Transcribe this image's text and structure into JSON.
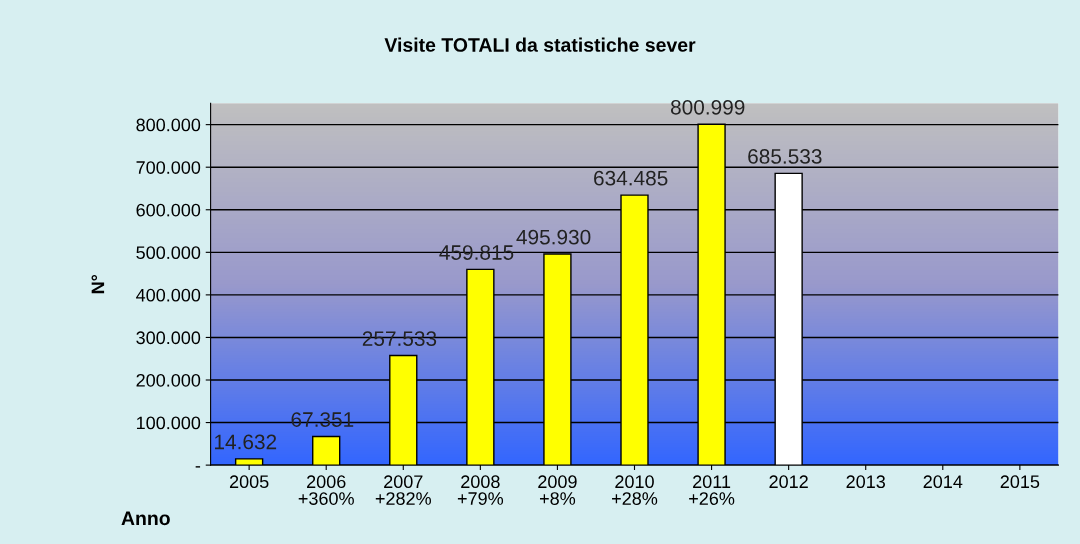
{
  "chart_data": {
    "type": "bar",
    "title": "Visite TOTALI da statistiche sever",
    "xlabel": "Anno",
    "ylabel": "N°",
    "categories": [
      "2005",
      "2006\n+360%",
      "2007\n+282%",
      "2008\n+79%",
      "2009\n+8%",
      "2010\n+28%",
      "2011\n+26%",
      "2012",
      "2013",
      "2014",
      "2015"
    ],
    "values": [
      14632,
      67351,
      257533,
      459815,
      495930,
      634485,
      800999,
      685533,
      null,
      null,
      null
    ],
    "colors": [
      "#ffff00",
      "#ffff00",
      "#ffff00",
      "#ffff00",
      "#ffff00",
      "#ffff00",
      "#ffff00",
      "#ffffff",
      "#ffff00",
      "#ffff00",
      "#ffff00"
    ],
    "value_labels": [
      "14.632",
      "67.351",
      "257.533",
      "459.815",
      "495.930",
      "634.485",
      "800.999",
      "685.533",
      null,
      null,
      null
    ],
    "ylim": [
      0,
      850000
    ],
    "yticks": [
      {
        "value": 0,
        "label": "-"
      },
      {
        "value": 100000,
        "label": "100.000"
      },
      {
        "value": 200000,
        "label": "200.000"
      },
      {
        "value": 300000,
        "label": "300.000"
      },
      {
        "value": 400000,
        "label": "400.000"
      },
      {
        "value": 500000,
        "label": "500.000"
      },
      {
        "value": 600000,
        "label": "600.000"
      },
      {
        "value": 700000,
        "label": "700.000"
      },
      {
        "value": 800000,
        "label": "800.000"
      }
    ],
    "grid": "y",
    "legend": false
  }
}
